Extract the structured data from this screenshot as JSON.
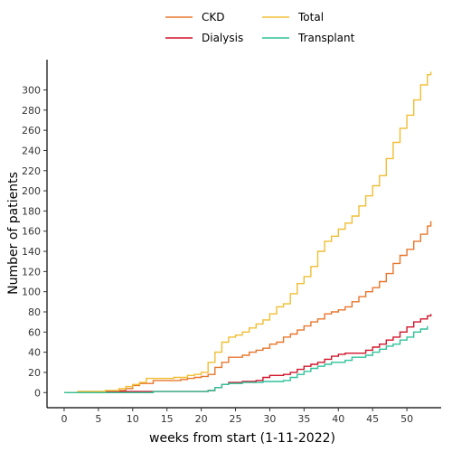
{
  "chart_data": {
    "type": "line",
    "step": true,
    "xlabel": "weeks from start (1-11-2022)",
    "ylabel": "Number of patients",
    "xlim": [
      -2.5,
      55
    ],
    "ylim": [
      -15,
      330
    ],
    "xticks": [
      0,
      5,
      10,
      15,
      20,
      25,
      30,
      35,
      40,
      45,
      50
    ],
    "yticks": [
      0,
      20,
      40,
      60,
      80,
      100,
      120,
      140,
      160,
      180,
      200,
      220,
      240,
      260,
      280,
      300
    ],
    "grid": false,
    "legend_position": "top",
    "legend_order": [
      "CKD",
      "Total",
      "Dialysis",
      "Transplant"
    ],
    "series": [
      {
        "name": "CKD",
        "color": "#E8762C",
        "points": [
          [
            0,
            0
          ],
          [
            2,
            1
          ],
          [
            8,
            2
          ],
          [
            9,
            4
          ],
          [
            10,
            7
          ],
          [
            11,
            9
          ],
          [
            13,
            12
          ],
          [
            17,
            13
          ],
          [
            18,
            14
          ],
          [
            19,
            15
          ],
          [
            20,
            16
          ],
          [
            21,
            18
          ],
          [
            22,
            25
          ],
          [
            23,
            30
          ],
          [
            24,
            35
          ],
          [
            26,
            37
          ],
          [
            27,
            40
          ],
          [
            28,
            42
          ],
          [
            29,
            44
          ],
          [
            30,
            48
          ],
          [
            31,
            50
          ],
          [
            32,
            55
          ],
          [
            33,
            58
          ],
          [
            34,
            62
          ],
          [
            35,
            66
          ],
          [
            36,
            70
          ],
          [
            37,
            73
          ],
          [
            38,
            78
          ],
          [
            39,
            80
          ],
          [
            40,
            82
          ],
          [
            41,
            85
          ],
          [
            42,
            90
          ],
          [
            43,
            95
          ],
          [
            44,
            100
          ],
          [
            45,
            104
          ],
          [
            46,
            110
          ],
          [
            47,
            118
          ],
          [
            48,
            128
          ],
          [
            49,
            136
          ],
          [
            50,
            142
          ],
          [
            51,
            150
          ],
          [
            52,
            157
          ],
          [
            53,
            165
          ],
          [
            53.5,
            170
          ]
        ]
      },
      {
        "name": "Dialysis",
        "color": "#D0152A",
        "points": [
          [
            0,
            0
          ],
          [
            6,
            1
          ],
          [
            13,
            1
          ],
          [
            21,
            2
          ],
          [
            22,
            5
          ],
          [
            23,
            8
          ],
          [
            24,
            10
          ],
          [
            26,
            11
          ],
          [
            28,
            12
          ],
          [
            29,
            15
          ],
          [
            30,
            17
          ],
          [
            32,
            18
          ],
          [
            33,
            20
          ],
          [
            34,
            23
          ],
          [
            35,
            26
          ],
          [
            36,
            28
          ],
          [
            37,
            30
          ],
          [
            38,
            33
          ],
          [
            39,
            36
          ],
          [
            40,
            38
          ],
          [
            41,
            39
          ],
          [
            44,
            42
          ],
          [
            45,
            45
          ],
          [
            46,
            48
          ],
          [
            47,
            52
          ],
          [
            48,
            55
          ],
          [
            49,
            60
          ],
          [
            50,
            65
          ],
          [
            51,
            70
          ],
          [
            52,
            73
          ],
          [
            53,
            76
          ],
          [
            53.5,
            78
          ]
        ]
      },
      {
        "name": "Total",
        "color": "#F0BE32",
        "points": [
          [
            0,
            0
          ],
          [
            2,
            1
          ],
          [
            6,
            2
          ],
          [
            8,
            4
          ],
          [
            9,
            6
          ],
          [
            10,
            8
          ],
          [
            11,
            10
          ],
          [
            12,
            14
          ],
          [
            16,
            15
          ],
          [
            18,
            17
          ],
          [
            19,
            18
          ],
          [
            20,
            20
          ],
          [
            21,
            30
          ],
          [
            22,
            40
          ],
          [
            23,
            50
          ],
          [
            24,
            55
          ],
          [
            25,
            57
          ],
          [
            26,
            60
          ],
          [
            27,
            64
          ],
          [
            28,
            68
          ],
          [
            29,
            72
          ],
          [
            30,
            78
          ],
          [
            31,
            85
          ],
          [
            32,
            88
          ],
          [
            33,
            98
          ],
          [
            34,
            108
          ],
          [
            35,
            115
          ],
          [
            36,
            125
          ],
          [
            37,
            140
          ],
          [
            38,
            150
          ],
          [
            39,
            155
          ],
          [
            40,
            162
          ],
          [
            41,
            168
          ],
          [
            42,
            175
          ],
          [
            43,
            185
          ],
          [
            44,
            195
          ],
          [
            45,
            205
          ],
          [
            46,
            215
          ],
          [
            47,
            232
          ],
          [
            48,
            248
          ],
          [
            49,
            262
          ],
          [
            50,
            275
          ],
          [
            51,
            290
          ],
          [
            52,
            305
          ],
          [
            53,
            315
          ],
          [
            53.5,
            318
          ]
        ]
      },
      {
        "name": "Transplant",
        "color": "#2FC29A",
        "points": [
          [
            0,
            0
          ],
          [
            13,
            1
          ],
          [
            21,
            2
          ],
          [
            22,
            5
          ],
          [
            23,
            8
          ],
          [
            24,
            9
          ],
          [
            26,
            10
          ],
          [
            29,
            11
          ],
          [
            32,
            12
          ],
          [
            33,
            15
          ],
          [
            34,
            18
          ],
          [
            35,
            21
          ],
          [
            36,
            24
          ],
          [
            37,
            26
          ],
          [
            38,
            28
          ],
          [
            39,
            30
          ],
          [
            41,
            32
          ],
          [
            42,
            35
          ],
          [
            44,
            37
          ],
          [
            45,
            40
          ],
          [
            46,
            43
          ],
          [
            47,
            46
          ],
          [
            48,
            48
          ],
          [
            49,
            52
          ],
          [
            50,
            55
          ],
          [
            51,
            60
          ],
          [
            52,
            63
          ],
          [
            53,
            66
          ]
        ]
      }
    ]
  }
}
